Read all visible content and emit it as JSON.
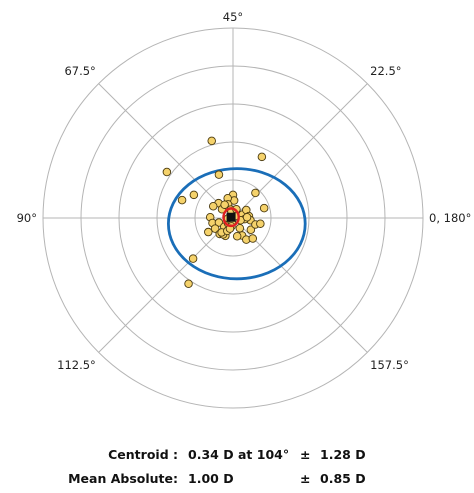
{
  "chart_data": {
    "type": "scatter",
    "coordinate_system": "double-angle polar",
    "angle_labels": [
      {
        "text": "45°",
        "angle_deg": 90
      },
      {
        "text": "22.5°",
        "angle_deg": 45
      },
      {
        "text": "0, 180°",
        "angle_deg": 0
      },
      {
        "text": "157.5°",
        "angle_deg": -45
      },
      {
        "text": "112.5°",
        "angle_deg": -135
      },
      {
        "text": "90°",
        "angle_deg": 180
      },
      {
        "text": "67.5°",
        "angle_deg": 135
      }
    ],
    "radial_rings": [
      1,
      2,
      3,
      4,
      5
    ],
    "grid": true,
    "points": [
      [
        -0.56,
        2.03
      ],
      [
        -1.74,
        1.21
      ],
      [
        -1.34,
        0.47
      ],
      [
        -1.03,
        0.61
      ],
      [
        -0.37,
        1.14
      ],
      [
        0.76,
        1.61
      ],
      [
        0.59,
        0.66
      ],
      [
        0.82,
        0.26
      ],
      [
        0.0,
        0.61
      ],
      [
        0.03,
        0.46
      ],
      [
        -0.14,
        0.52
      ],
      [
        -0.38,
        0.39
      ],
      [
        -0.52,
        0.31
      ],
      [
        -0.29,
        0.23
      ],
      [
        -0.13,
        0.36
      ],
      [
        -0.06,
        0.22
      ],
      [
        0.05,
        0.12
      ],
      [
        0.25,
        0.09
      ],
      [
        0.35,
        0.21
      ],
      [
        0.42,
        0.05
      ],
      [
        0.46,
        -0.06
      ],
      [
        0.31,
        -0.03
      ],
      [
        0.2,
        -0.06
      ],
      [
        -0.05,
        0.05
      ],
      [
        -0.04,
        0.17
      ],
      [
        -0.6,
        0.02
      ],
      [
        -0.54,
        -0.13
      ],
      [
        -0.37,
        -0.12
      ],
      [
        -0.47,
        -0.28
      ],
      [
        -0.35,
        -0.42
      ],
      [
        -0.23,
        -0.23
      ],
      [
        -0.13,
        -0.14
      ],
      [
        -0.03,
        -0.12
      ],
      [
        0.18,
        -0.27
      ],
      [
        0.24,
        -0.46
      ],
      [
        0.47,
        -0.31
      ],
      [
        0.59,
        -0.17
      ],
      [
        0.72,
        -0.15
      ],
      [
        0.37,
        0.02
      ],
      [
        -0.2,
        -0.47
      ],
      [
        -0.26,
        -0.43
      ],
      [
        -0.3,
        -0.38
      ],
      [
        -0.13,
        -0.01
      ],
      [
        0.11,
        -0.48
      ],
      [
        0.35,
        -0.57
      ],
      [
        0.52,
        -0.54
      ],
      [
        -0.65,
        -0.37
      ],
      [
        -0.22,
        0.35
      ],
      [
        0.09,
        0.23
      ],
      [
        -0.04,
        -0.22
      ],
      [
        -0.15,
        -0.34
      ],
      [
        -1.05,
        -1.07
      ],
      [
        -1.17,
        -1.73
      ],
      [
        -0.08,
        -0.28
      ],
      [
        0.06,
        0.05
      ]
    ],
    "centroid_marker": [
      -0.05,
      0.02
    ],
    "centroid_ellipse": {
      "center": [
        -0.05,
        0.02
      ],
      "rx": 0.2,
      "ry": 0.23
    },
    "spread_ellipse": {
      "center": [
        0.1,
        -0.15
      ],
      "rx": 1.8,
      "ry": 1.45
    },
    "colors": {
      "points": "#F5D26B",
      "point_edge": "#4A3A10",
      "spread_ellipse": "#1A6EB8",
      "centroid_ellipse": "#E02020",
      "marker": "#111111"
    }
  },
  "stats": {
    "centroid": {
      "label": "Centroid :",
      "magnitude": "0.34 D",
      "at_text": "at 104°",
      "pm": "±",
      "sd": "1.28 D"
    },
    "mean_absolute": {
      "label": "Mean Absolute:",
      "magnitude": "1.00 D",
      "pm": "±",
      "sd": "0.85 D"
    }
  }
}
